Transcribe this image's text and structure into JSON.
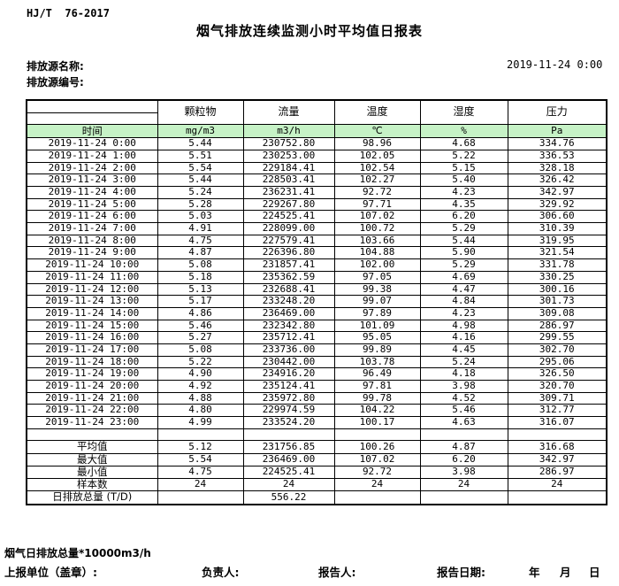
{
  "header": {
    "standard": "HJ/T  76-2017",
    "title": "烟气排放连续监测小时平均值日报表",
    "source_name_label": "排放源名称:",
    "source_id_label": "排放源编号:",
    "datetime": "2019-11-24 0:00"
  },
  "table": {
    "time_header": "时间",
    "columns": [
      {
        "name": "颗粒物",
        "unit": "mg/m3"
      },
      {
        "name": "流量",
        "unit": "m3/h"
      },
      {
        "name": "温度",
        "unit": "℃"
      },
      {
        "name": "湿度",
        "unit": "%"
      },
      {
        "name": "压力",
        "unit": "Pa"
      }
    ],
    "rows": [
      {
        "time": "2019-11-24 0:00",
        "values": [
          "5.44",
          "230752.80",
          "98.96",
          "4.68",
          "334.76"
        ]
      },
      {
        "time": "2019-11-24 1:00",
        "values": [
          "5.51",
          "230253.00",
          "102.05",
          "5.22",
          "336.53"
        ]
      },
      {
        "time": "2019-11-24 2:00",
        "values": [
          "5.54",
          "229184.41",
          "102.54",
          "5.15",
          "328.18"
        ]
      },
      {
        "time": "2019-11-24 3:00",
        "values": [
          "5.44",
          "228503.41",
          "102.27",
          "5.40",
          "326.42"
        ]
      },
      {
        "time": "2019-11-24 4:00",
        "values": [
          "5.24",
          "236231.41",
          "92.72",
          "4.23",
          "342.97"
        ]
      },
      {
        "time": "2019-11-24 5:00",
        "values": [
          "5.28",
          "229267.80",
          "97.71",
          "4.35",
          "329.92"
        ]
      },
      {
        "time": "2019-11-24 6:00",
        "values": [
          "5.03",
          "224525.41",
          "107.02",
          "6.20",
          "306.60"
        ]
      },
      {
        "time": "2019-11-24 7:00",
        "values": [
          "4.91",
          "228099.00",
          "100.72",
          "5.29",
          "310.39"
        ]
      },
      {
        "time": "2019-11-24 8:00",
        "values": [
          "4.75",
          "227579.41",
          "103.66",
          "5.44",
          "319.95"
        ]
      },
      {
        "time": "2019-11-24 9:00",
        "values": [
          "4.87",
          "226396.80",
          "104.88",
          "5.90",
          "321.54"
        ]
      },
      {
        "time": "2019-11-24 10:00",
        "values": [
          "5.08",
          "231857.41",
          "102.00",
          "5.29",
          "331.78"
        ]
      },
      {
        "time": "2019-11-24 11:00",
        "values": [
          "5.18",
          "235362.59",
          "97.05",
          "4.69",
          "330.25"
        ]
      },
      {
        "time": "2019-11-24 12:00",
        "values": [
          "5.13",
          "232688.41",
          "99.38",
          "4.47",
          "300.16"
        ]
      },
      {
        "time": "2019-11-24 13:00",
        "values": [
          "5.17",
          "233248.20",
          "99.07",
          "4.84",
          "301.73"
        ]
      },
      {
        "time": "2019-11-24 14:00",
        "values": [
          "4.86",
          "236469.00",
          "97.89",
          "4.23",
          "309.08"
        ]
      },
      {
        "time": "2019-11-24 15:00",
        "values": [
          "5.46",
          "232342.80",
          "101.09",
          "4.98",
          "286.97"
        ]
      },
      {
        "time": "2019-11-24 16:00",
        "values": [
          "5.27",
          "235712.41",
          "95.05",
          "4.16",
          "299.55"
        ]
      },
      {
        "time": "2019-11-24 17:00",
        "values": [
          "5.08",
          "233736.00",
          "99.89",
          "4.45",
          "302.70"
        ]
      },
      {
        "time": "2019-11-24 18:00",
        "values": [
          "5.22",
          "230442.00",
          "103.78",
          "5.24",
          "295.06"
        ]
      },
      {
        "time": "2019-11-24 19:00",
        "values": [
          "4.90",
          "234916.20",
          "96.49",
          "4.18",
          "326.50"
        ]
      },
      {
        "time": "2019-11-24 20:00",
        "values": [
          "4.92",
          "235124.41",
          "97.81",
          "3.98",
          "320.70"
        ]
      },
      {
        "time": "2019-11-24 21:00",
        "values": [
          "4.88",
          "235972.80",
          "99.78",
          "4.52",
          "309.71"
        ]
      },
      {
        "time": "2019-11-24 22:00",
        "values": [
          "4.80",
          "229974.59",
          "104.22",
          "5.46",
          "312.77"
        ]
      },
      {
        "time": "2019-11-24 23:00",
        "values": [
          "4.99",
          "233524.20",
          "100.17",
          "4.63",
          "316.07"
        ]
      }
    ],
    "summary": [
      {
        "label": "平均值",
        "values": [
          "5.12",
          "231756.85",
          "100.26",
          "4.87",
          "316.68"
        ]
      },
      {
        "label": "最大值",
        "values": [
          "5.54",
          "236469.00",
          "107.02",
          "6.20",
          "342.97"
        ]
      },
      {
        "label": "最小值",
        "values": [
          "4.75",
          "224525.41",
          "92.72",
          "3.98",
          "286.97"
        ]
      },
      {
        "label": "样本数",
        "values": [
          "24",
          "24",
          "24",
          "24",
          "24"
        ]
      },
      {
        "label": "日排放总量 (T/D)",
        "values": [
          "",
          "556.22",
          "",
          "",
          ""
        ]
      }
    ]
  },
  "footer": {
    "note": "烟气日排放总量*10000m3/h",
    "unit_label": "上报单位（盖章）:",
    "responsible_label": "负责人:",
    "reporter_label": "报告人:",
    "report_date_label": "报告日期:",
    "year_label": "年",
    "month_label": "月",
    "day_label": "日"
  },
  "colors": {
    "header_green": "#C6F2C6",
    "border": "#000000",
    "background": "#FFFFFF"
  }
}
